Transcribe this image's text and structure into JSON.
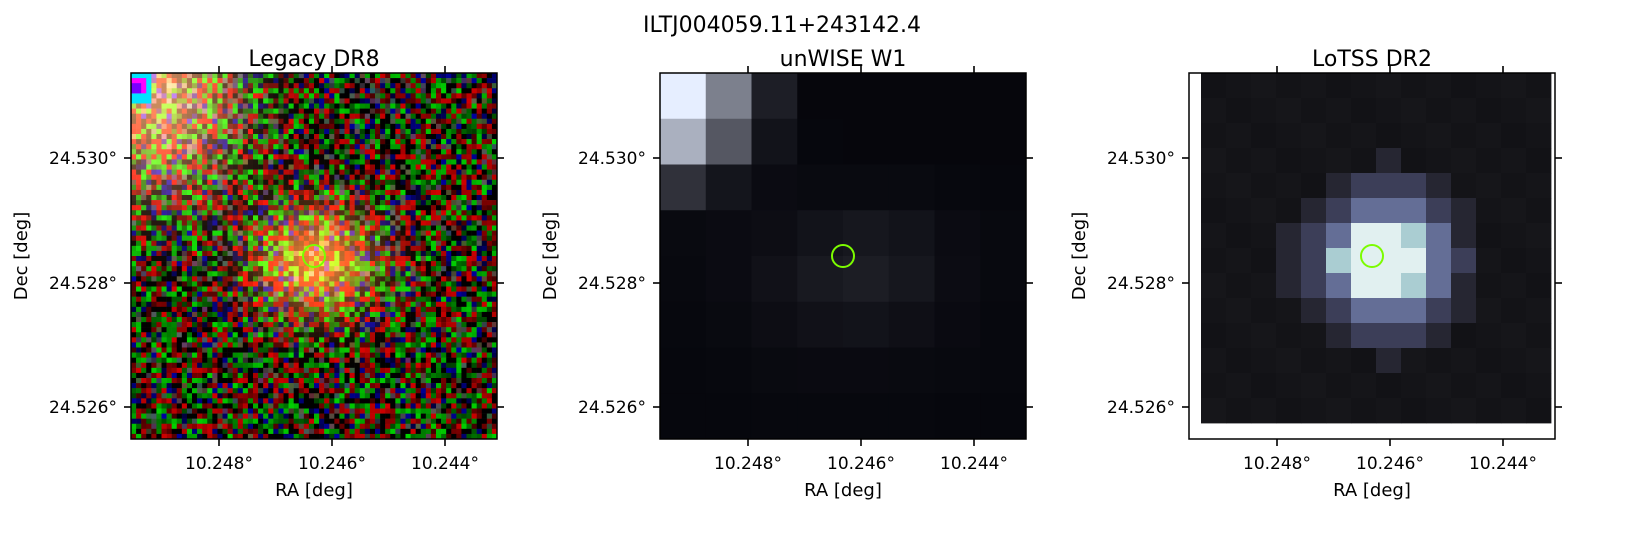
{
  "figure": {
    "title": "ILTJ004059.11+243142.4"
  },
  "panels": [
    {
      "title": "Legacy DR8",
      "xlabel": "RA [deg]",
      "ylabel": "Dec [deg]",
      "xticks": [
        "10.248°",
        "10.246°",
        "10.244°"
      ],
      "yticks": [
        "24.530°",
        "24.528°",
        "24.526°"
      ],
      "image": "noisy rgb optical cutout with two orange galaxies",
      "marker": {
        "shape": "circle",
        "color": "#7cfc00"
      }
    },
    {
      "title": "unWISE W1",
      "xlabel": "RA [deg]",
      "ylabel": "Dec [deg]",
      "xticks": [
        "10.248°",
        "10.246°",
        "10.244°"
      ],
      "yticks": [
        "24.530°",
        "24.528°",
        "24.526°"
      ],
      "image": "dark pixelated infrared cutout with bright top-left corner",
      "marker": {
        "shape": "circle",
        "color": "#7cfc00"
      }
    },
    {
      "title": "LoTSS DR2",
      "xlabel": "RA [deg]",
      "ylabel": "Dec [deg]",
      "xticks": [
        "10.248°",
        "10.246°",
        "10.244°"
      ],
      "yticks": [
        "24.530°",
        "24.528°",
        "24.526°"
      ],
      "image": "pixelated radio cutout with bright central blob",
      "marker": {
        "shape": "circle",
        "color": "#7cfc00"
      }
    }
  ],
  "colors": {
    "marker": "#7cfc00",
    "axes": "#000000"
  }
}
